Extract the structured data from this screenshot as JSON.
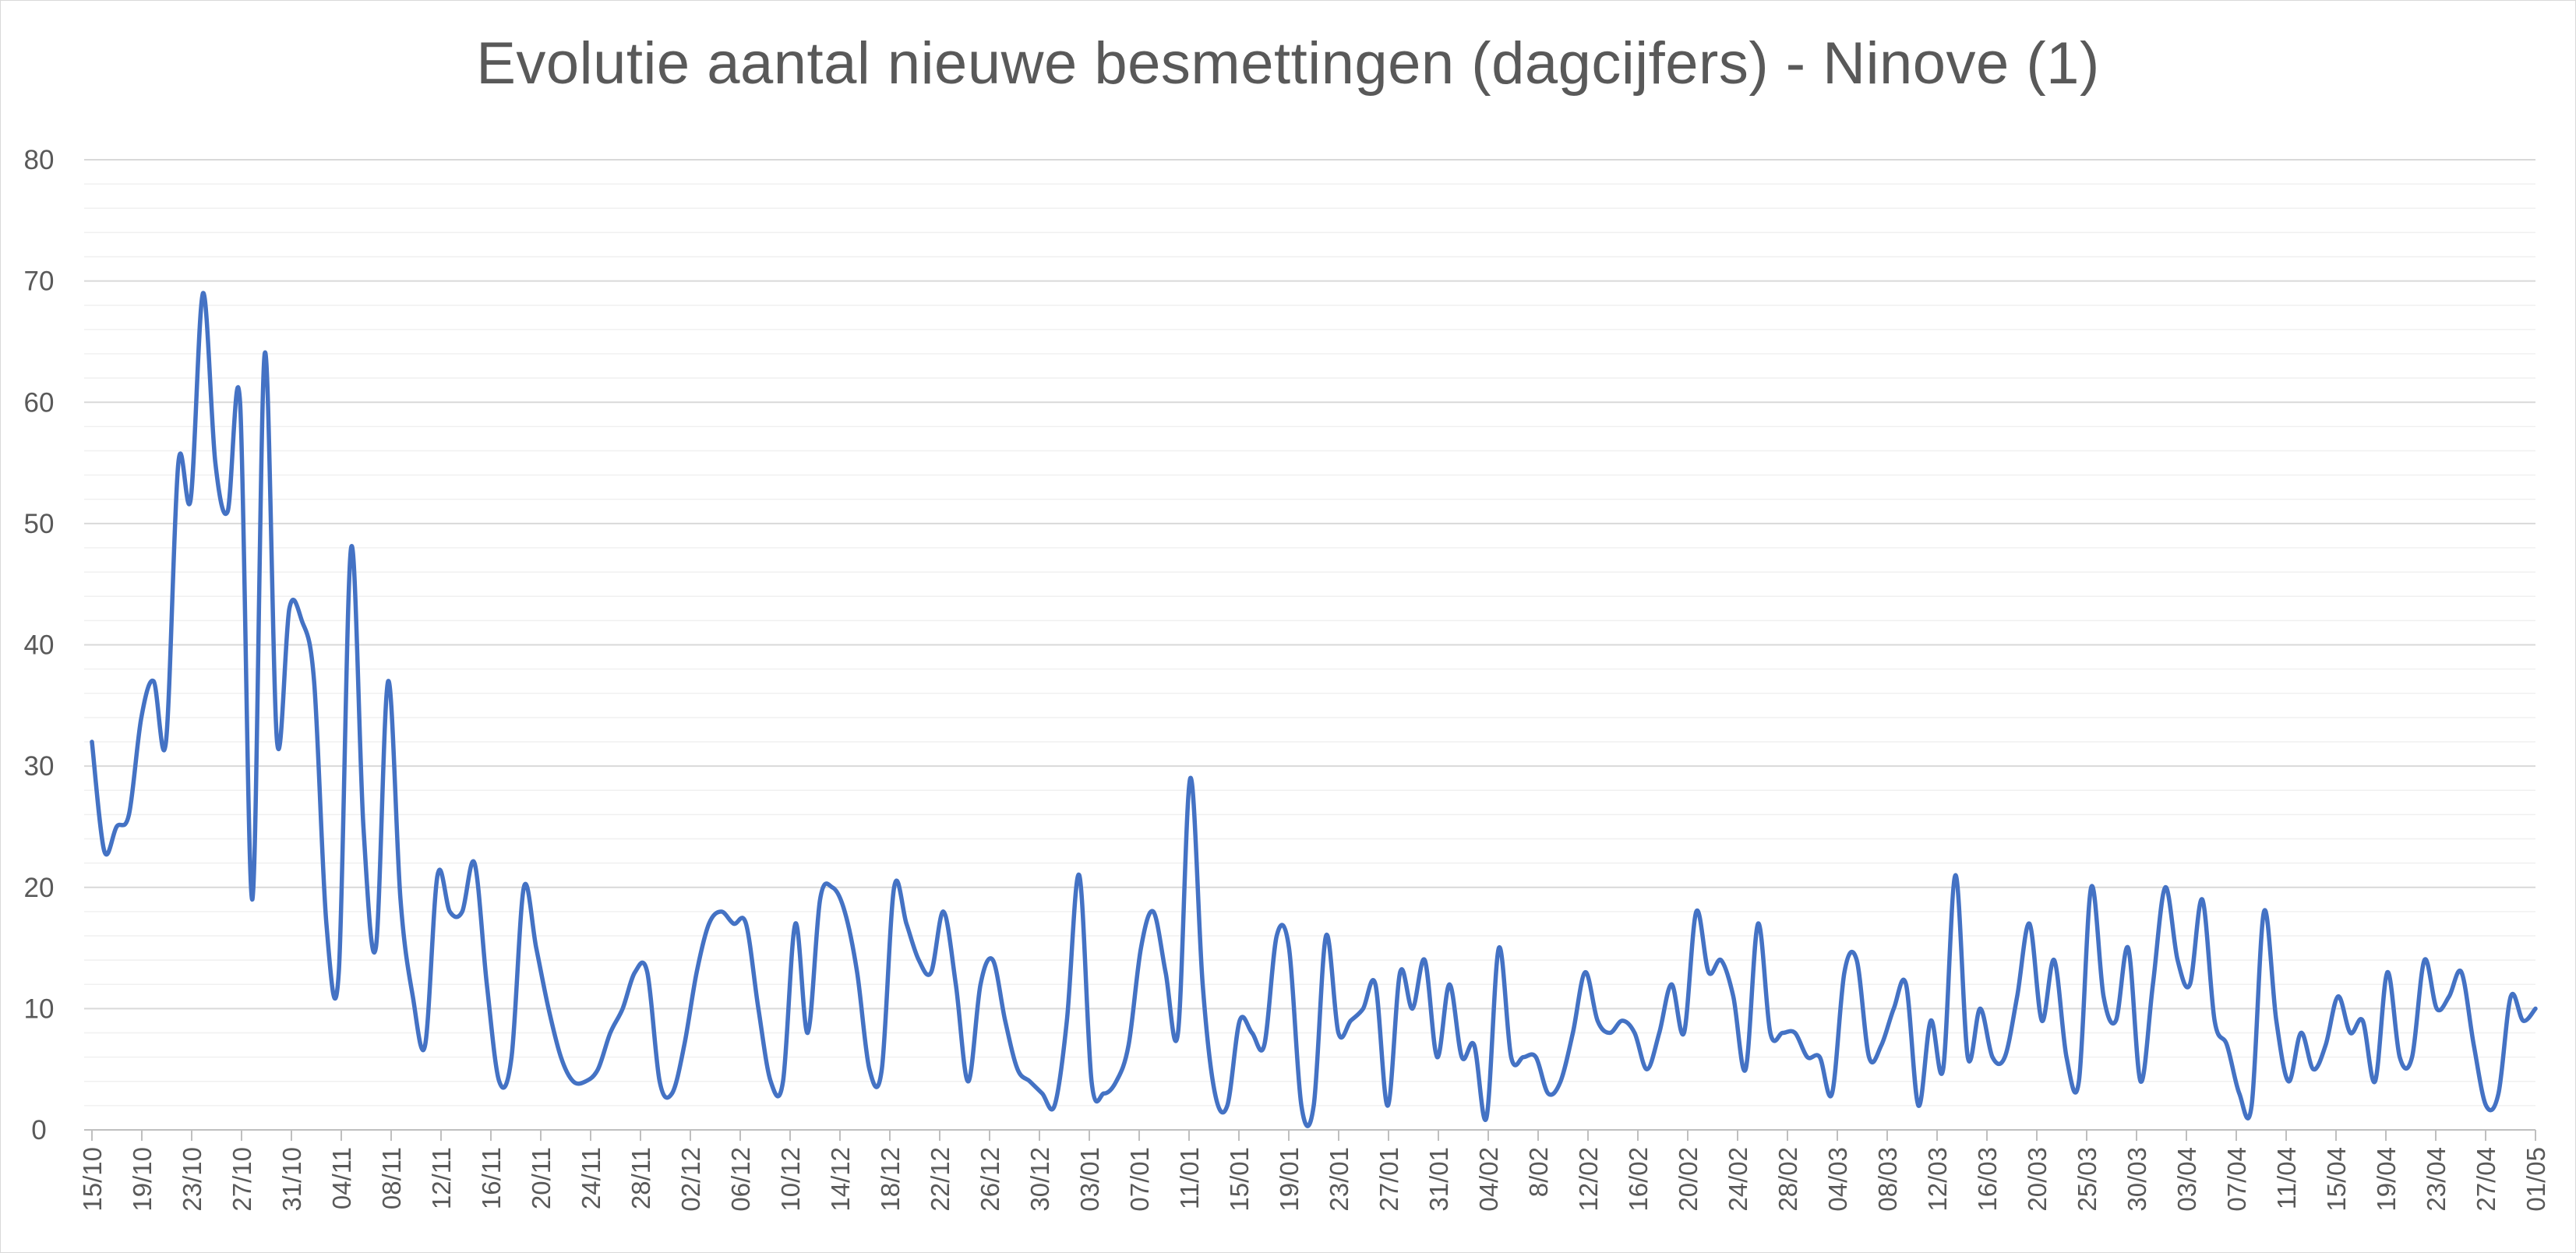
{
  "chart_data": {
    "type": "line",
    "title": "Evolutie aantal nieuwe besmettingen (dagcijfers) - Ninove (1)",
    "xlabel": "",
    "ylabel": "",
    "ylim": [
      0,
      80
    ],
    "yticks": [
      0,
      10,
      20,
      30,
      40,
      50,
      60,
      70,
      80
    ],
    "grid": true,
    "legend": "none",
    "line_color": "#4472c4",
    "x_tick_labels": [
      "15/10",
      "19/10",
      "23/10",
      "27/10",
      "31/10",
      "04/11",
      "08/11",
      "12/11",
      "16/11",
      "20/11",
      "24/11",
      "28/11",
      "02/12",
      "06/12",
      "10/12",
      "14/12",
      "18/12",
      "22/12",
      "26/12",
      "30/12",
      "03/01",
      "07/01",
      "11/01",
      "15/01",
      "19/01",
      "23/01",
      "27/01",
      "31/01",
      "04/02",
      "8/02",
      "12/02",
      "16/02",
      "20/02",
      "24/02",
      "28/02",
      "04/03",
      "08/03",
      "12/03",
      "16/03",
      "20/03",
      "25/03",
      "30/03",
      "03/04",
      "07/04",
      "11/04",
      "15/04",
      "19/04",
      "23/04",
      "27/04",
      "01/05"
    ],
    "series": [
      {
        "values": [
          32,
          23,
          25,
          26,
          34,
          37,
          32,
          55,
          52,
          69,
          55,
          51,
          60,
          19,
          64,
          32,
          43,
          42,
          37,
          17,
          13,
          48,
          25,
          15,
          37,
          19,
          11,
          7,
          21,
          18,
          18,
          22,
          12,
          4,
          6,
          20,
          15,
          10,
          6,
          4,
          4,
          5,
          8,
          10,
          13,
          13,
          4,
          3,
          7,
          13,
          17,
          18,
          17,
          17,
          10,
          4,
          4,
          17,
          8,
          19,
          20,
          18,
          13,
          5,
          5,
          20,
          17,
          14,
          13,
          18,
          12,
          4,
          12,
          14,
          9,
          5,
          4,
          3,
          2,
          9,
          21,
          4,
          3,
          4,
          7,
          15,
          18,
          13,
          8,
          29,
          12,
          3,
          2,
          9,
          8,
          7,
          16,
          15,
          2,
          2,
          16,
          8,
          9,
          10,
          12,
          2,
          13,
          10,
          14,
          6,
          12,
          6,
          7,
          1,
          15,
          6,
          6,
          6,
          3,
          4,
          8,
          13,
          9,
          8,
          9,
          8,
          5,
          8,
          12,
          8,
          18,
          13,
          14,
          11,
          5,
          17,
          8,
          8,
          8,
          6,
          6,
          3,
          13,
          14,
          6,
          7,
          10,
          12,
          2,
          9,
          5,
          21,
          6,
          10,
          6,
          6,
          11,
          17,
          9,
          14,
          6,
          4,
          20,
          11,
          9,
          15,
          4,
          12,
          20,
          14,
          12,
          19,
          9,
          7,
          3,
          2,
          18,
          9,
          4,
          8,
          5,
          7,
          11,
          8,
          9,
          4,
          13,
          6,
          6,
          14,
          10,
          11,
          13,
          7,
          2,
          3,
          11,
          9,
          10
        ]
      }
    ]
  }
}
